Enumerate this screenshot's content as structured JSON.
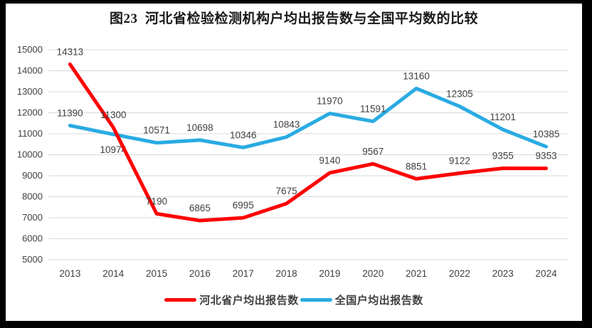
{
  "chart_data": {
    "type": "line",
    "title": "图23  河北省检验检测机构户均出报告数与全国平均数的比较",
    "categories": [
      "2013",
      "2014",
      "2015",
      "2016",
      "2017",
      "2018",
      "2019",
      "2020",
      "2021",
      "2022",
      "2023",
      "2024"
    ],
    "series": [
      {
        "name": "河北省户均出报告数",
        "color": "#ff0000",
        "values": [
          14313,
          11300,
          7190,
          6865,
          6995,
          7675,
          9140,
          9567,
          8851,
          9122,
          9355,
          9353
        ],
        "label_below": []
      },
      {
        "name": "全国户均出报告数",
        "color": "#29abe2",
        "values": [
          11390,
          10974,
          10571,
          10698,
          10346,
          10843,
          11970,
          11591,
          13160,
          12305,
          11201,
          10385
        ],
        "label_below": [
          "2014"
        ]
      }
    ],
    "ylim": [
      5000,
      15000
    ],
    "yticks": [
      5000,
      6000,
      7000,
      8000,
      9000,
      10000,
      11000,
      12000,
      13000,
      14000,
      15000
    ],
    "xlabel": "",
    "ylabel": "",
    "grid": true,
    "legend_position": "bottom",
    "style": {
      "grid_color": "#d9d9d9",
      "tick_color": "#404040",
      "data_label_color": "#404040",
      "line_width": 5
    }
  }
}
